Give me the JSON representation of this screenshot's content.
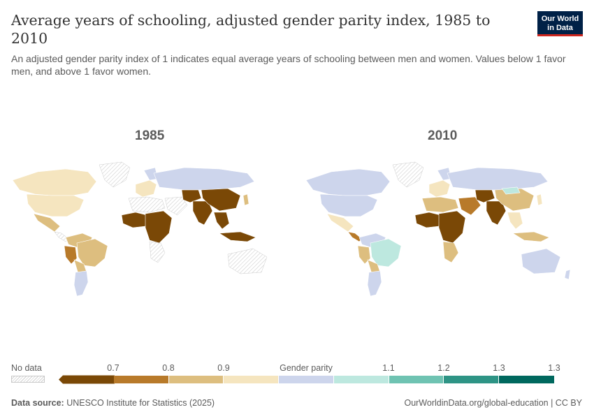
{
  "header": {
    "title": "Average years of schooling, adjusted gender parity index, 1985 to 2010",
    "subtitle": "An adjusted gender parity index of 1 indicates equal average years of schooling between men and women. Values below 1 favor men, and above 1 favor women.",
    "logo_line1": "Our World",
    "logo_line2": "in Data"
  },
  "maps": [
    {
      "year": "1985"
    },
    {
      "year": "2010"
    }
  ],
  "legend": {
    "no_data_label": "No data",
    "center_label": "Gender parity",
    "ticks": [
      "0.7",
      "0.8",
      "0.9",
      "1.1",
      "1.2",
      "1.3",
      "1.3"
    ],
    "bins": [
      {
        "color": "#7a4806"
      },
      {
        "color": "#b87a2a"
      },
      {
        "color": "#ddbe7f"
      },
      {
        "color": "#f5e5bf"
      },
      {
        "color": "#cdd5ec"
      },
      {
        "color": "#bde8df"
      },
      {
        "color": "#6fc3b2"
      },
      {
        "color": "#2e9485"
      },
      {
        "color": "#00685e"
      }
    ]
  },
  "colors": {
    "very_low": "#7a4806",
    "low": "#b87a2a",
    "medium_low": "#ddbe7f",
    "near_parity_low": "#f5e5bf",
    "near_parity_high": "#cdd5ec",
    "high": "#bde8df",
    "very_high": "#6fc3b2",
    "no_data": "#e8e8e8"
  },
  "footer": {
    "source_label": "Data source:",
    "source_text": "UNESCO Institute for Statistics (2025)",
    "url": "OurWorldinData.org/global-education | CC BY"
  }
}
